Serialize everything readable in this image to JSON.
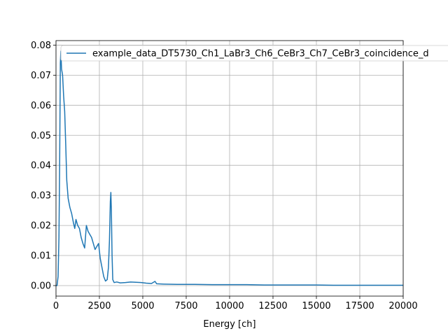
{
  "chart_data": {
    "type": "line",
    "title": "",
    "xlabel": "Energy [ch]",
    "ylabel": "",
    "xlim": [
      0,
      20000
    ],
    "ylim": [
      -0.0035,
      0.0815
    ],
    "x_ticks": [
      0,
      2500,
      5000,
      7500,
      10000,
      12500,
      15000,
      17500,
      20000
    ],
    "x_tick_labels": [
      "0",
      "2500",
      "5000",
      "7500",
      "10000",
      "12500",
      "15000",
      "17500",
      "20000"
    ],
    "y_ticks": [
      0.0,
      0.01,
      0.02,
      0.03,
      0.04,
      0.05,
      0.06,
      0.07,
      0.08
    ],
    "y_tick_labels": [
      "0.00",
      "0.01",
      "0.02",
      "0.03",
      "0.04",
      "0.05",
      "0.06",
      "0.07",
      "0.08"
    ],
    "grid": true,
    "legend_position": "top-right",
    "series": [
      {
        "name": "example_data_DT5730_Ch1_LaBr3_Ch6_CeBr3_Ch7_CeBr3_coincidence_d",
        "color": "#1f77b4",
        "points": [
          [
            0,
            0.0
          ],
          [
            60,
            0.0
          ],
          [
            120,
            0.003
          ],
          [
            170,
            0.016
          ],
          [
            210,
            0.04
          ],
          [
            250,
            0.074
          ],
          [
            280,
            0.078
          ],
          [
            320,
            0.072
          ],
          [
            380,
            0.07
          ],
          [
            440,
            0.063
          ],
          [
            500,
            0.058
          ],
          [
            560,
            0.047
          ],
          [
            620,
            0.035
          ],
          [
            700,
            0.029
          ],
          [
            800,
            0.026
          ],
          [
            900,
            0.024
          ],
          [
            1000,
            0.021
          ],
          [
            1080,
            0.019
          ],
          [
            1150,
            0.022
          ],
          [
            1250,
            0.02
          ],
          [
            1350,
            0.019
          ],
          [
            1450,
            0.016
          ],
          [
            1550,
            0.014
          ],
          [
            1650,
            0.0125
          ],
          [
            1750,
            0.02
          ],
          [
            1850,
            0.018
          ],
          [
            1950,
            0.017
          ],
          [
            2050,
            0.016
          ],
          [
            2150,
            0.014
          ],
          [
            2250,
            0.012
          ],
          [
            2350,
            0.013
          ],
          [
            2450,
            0.014
          ],
          [
            2550,
            0.009
          ],
          [
            2650,
            0.006
          ],
          [
            2750,
            0.003
          ],
          [
            2850,
            0.0015
          ],
          [
            2950,
            0.002
          ],
          [
            3020,
            0.006
          ],
          [
            3080,
            0.015
          ],
          [
            3130,
            0.028
          ],
          [
            3160,
            0.031
          ],
          [
            3190,
            0.025
          ],
          [
            3230,
            0.01
          ],
          [
            3270,
            0.002
          ],
          [
            3350,
            0.001
          ],
          [
            3500,
            0.0012
          ],
          [
            3700,
            0.0009
          ],
          [
            4000,
            0.001
          ],
          [
            4300,
            0.0012
          ],
          [
            4600,
            0.0011
          ],
          [
            4900,
            0.001
          ],
          [
            5200,
            0.0008
          ],
          [
            5500,
            0.0007
          ],
          [
            5700,
            0.0014
          ],
          [
            5800,
            0.0006
          ],
          [
            6200,
            0.0005
          ],
          [
            7000,
            0.0004
          ],
          [
            8000,
            0.0004
          ],
          [
            9000,
            0.0003
          ],
          [
            10000,
            0.0003
          ],
          [
            11000,
            0.0003
          ],
          [
            12000,
            0.0002
          ],
          [
            13000,
            0.0002
          ],
          [
            14000,
            0.0002
          ],
          [
            15000,
            0.0002
          ],
          [
            16000,
            0.0001
          ],
          [
            17000,
            0.0001
          ],
          [
            18000,
            0.0001
          ],
          [
            19000,
            0.0001
          ],
          [
            20000,
            0.0001
          ]
        ]
      }
    ]
  }
}
